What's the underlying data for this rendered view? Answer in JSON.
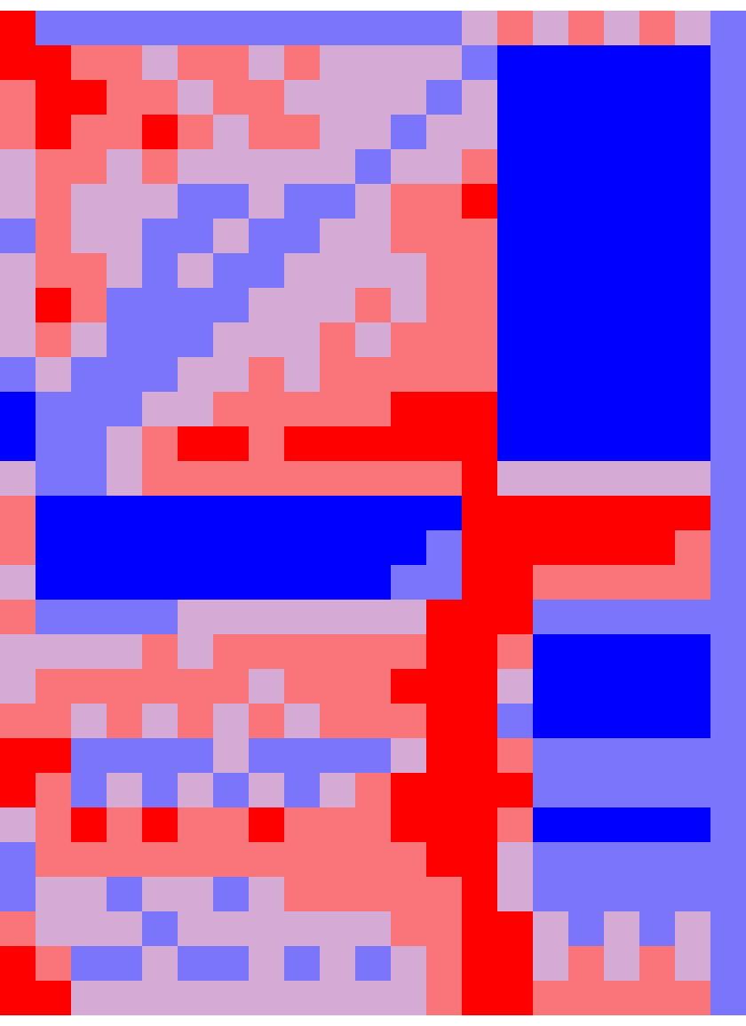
{
  "chart_data": {
    "type": "heatmap",
    "tick_labels": false,
    "zlim": [
      -2,
      2
    ],
    "cells": [
      [
        2,
        -1,
        -1,
        -1,
        -1,
        -1,
        -1,
        -1,
        -1,
        -1,
        -1,
        -1,
        -1,
        0,
        1,
        0,
        1,
        0,
        1,
        0,
        -1
      ],
      [
        2,
        2,
        1,
        1,
        0,
        1,
        1,
        0,
        1,
        0,
        0,
        0,
        0,
        -1,
        -2,
        -2,
        -2,
        -2,
        -2,
        -2,
        -1
      ],
      [
        1,
        2,
        2,
        1,
        1,
        0,
        1,
        1,
        0,
        0,
        0,
        0,
        -1,
        0,
        -2,
        -2,
        -2,
        -2,
        -2,
        -2,
        -1
      ],
      [
        1,
        2,
        1,
        1,
        2,
        1,
        0,
        1,
        1,
        0,
        0,
        -1,
        0,
        0,
        -2,
        -2,
        -2,
        -2,
        -2,
        -2,
        -1
      ],
      [
        0,
        1,
        1,
        0,
        1,
        0,
        0,
        0,
        0,
        0,
        -1,
        0,
        0,
        1,
        -2,
        -2,
        -2,
        -2,
        -2,
        -2,
        -1
      ],
      [
        0,
        1,
        0,
        0,
        0,
        -1,
        -1,
        0,
        -1,
        -1,
        0,
        1,
        1,
        2,
        -2,
        -2,
        -2,
        -2,
        -2,
        -2,
        -1
      ],
      [
        -1,
        1,
        0,
        0,
        -1,
        -1,
        0,
        -1,
        -1,
        0,
        0,
        1,
        1,
        1,
        -2,
        -2,
        -2,
        -2,
        -2,
        -2,
        -1
      ],
      [
        0,
        1,
        1,
        0,
        -1,
        0,
        -1,
        -1,
        0,
        0,
        0,
        0,
        1,
        1,
        -2,
        -2,
        -2,
        -2,
        -2,
        -2,
        -1
      ],
      [
        0,
        2,
        1,
        -1,
        -1,
        -1,
        -1,
        0,
        0,
        0,
        1,
        0,
        1,
        1,
        -2,
        -2,
        -2,
        -2,
        -2,
        -2,
        -1
      ],
      [
        0,
        1,
        0,
        -1,
        -1,
        -1,
        0,
        0,
        0,
        1,
        0,
        1,
        1,
        1,
        -2,
        -2,
        -2,
        -2,
        -2,
        -2,
        -1
      ],
      [
        -1,
        0,
        -1,
        -1,
        -1,
        0,
        0,
        1,
        0,
        1,
        1,
        1,
        1,
        1,
        -2,
        -2,
        -2,
        -2,
        -2,
        -2,
        -1
      ],
      [
        -2,
        -1,
        -1,
        -1,
        0,
        0,
        1,
        1,
        1,
        1,
        1,
        2,
        2,
        2,
        -2,
        -2,
        -2,
        -2,
        -2,
        -2,
        -1
      ],
      [
        -2,
        -1,
        -1,
        0,
        1,
        2,
        2,
        1,
        2,
        2,
        2,
        2,
        2,
        2,
        -2,
        -2,
        -2,
        -2,
        -2,
        -2,
        -1
      ],
      [
        0,
        -1,
        -1,
        0,
        1,
        1,
        1,
        1,
        1,
        1,
        1,
        1,
        1,
        2,
        0,
        0,
        0,
        0,
        0,
        0,
        -1
      ],
      [
        1,
        -2,
        -2,
        -2,
        -2,
        -2,
        -2,
        -2,
        -2,
        -2,
        -2,
        -2,
        -2,
        2,
        2,
        2,
        2,
        2,
        2,
        2,
        -1
      ],
      [
        1,
        -2,
        -2,
        -2,
        -2,
        -2,
        -2,
        -2,
        -2,
        -2,
        -2,
        -2,
        -1,
        2,
        2,
        2,
        2,
        2,
        2,
        1,
        -1
      ],
      [
        0,
        -2,
        -2,
        -2,
        -2,
        -2,
        -2,
        -2,
        -2,
        -2,
        -2,
        -1,
        -1,
        2,
        2,
        1,
        1,
        1,
        1,
        1,
        -1
      ],
      [
        1,
        -1,
        -1,
        -1,
        -1,
        0,
        0,
        0,
        0,
        0,
        0,
        0,
        2,
        2,
        2,
        -1,
        -1,
        -1,
        -1,
        -1,
        -1
      ],
      [
        0,
        0,
        0,
        0,
        1,
        0,
        1,
        1,
        1,
        1,
        1,
        1,
        2,
        2,
        1,
        -2,
        -2,
        -2,
        -2,
        -2,
        -1
      ],
      [
        0,
        1,
        1,
        1,
        1,
        1,
        1,
        0,
        1,
        1,
        1,
        2,
        2,
        2,
        0,
        -2,
        -2,
        -2,
        -2,
        -2,
        -1
      ],
      [
        1,
        1,
        0,
        1,
        0,
        1,
        0,
        1,
        0,
        1,
        1,
        1,
        2,
        2,
        -1,
        -2,
        -2,
        -2,
        -2,
        -2,
        -1
      ],
      [
        2,
        2,
        -1,
        -1,
        -1,
        -1,
        0,
        -1,
        -1,
        -1,
        -1,
        0,
        2,
        2,
        1,
        -1,
        -1,
        -1,
        -1,
        -1,
        -1
      ],
      [
        2,
        1,
        -1,
        0,
        -1,
        0,
        -1,
        0,
        -1,
        0,
        1,
        2,
        2,
        2,
        2,
        -1,
        -1,
        -1,
        -1,
        -1,
        -1
      ],
      [
        0,
        1,
        2,
        1,
        2,
        1,
        1,
        2,
        1,
        1,
        1,
        2,
        2,
        2,
        1,
        -2,
        -2,
        -2,
        -2,
        -2,
        -1
      ],
      [
        -1,
        1,
        1,
        1,
        1,
        1,
        1,
        1,
        1,
        1,
        1,
        1,
        2,
        2,
        0,
        -1,
        -1,
        -1,
        -1,
        -1,
        -1
      ],
      [
        -1,
        0,
        0,
        -1,
        0,
        0,
        -1,
        0,
        1,
        1,
        1,
        1,
        1,
        2,
        0,
        -1,
        -1,
        -1,
        -1,
        -1,
        -1
      ],
      [
        1,
        0,
        0,
        0,
        -1,
        0,
        0,
        0,
        0,
        0,
        0,
        1,
        1,
        2,
        2,
        0,
        -1,
        0,
        -1,
        0,
        -1
      ],
      [
        2,
        1,
        -1,
        -1,
        0,
        -1,
        -1,
        0,
        -1,
        0,
        -1,
        0,
        1,
        2,
        2,
        0,
        1,
        0,
        1,
        0,
        -1
      ],
      [
        2,
        2,
        0,
        0,
        0,
        0,
        0,
        0,
        0,
        0,
        0,
        0,
        1,
        2,
        2,
        1,
        1,
        1,
        1,
        1,
        -1
      ]
    ]
  }
}
